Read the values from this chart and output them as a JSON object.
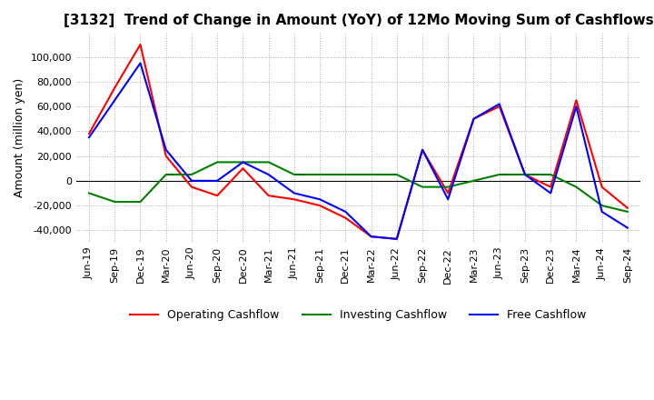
{
  "title": "[3132]  Trend of Change in Amount (YoY) of 12Mo Moving Sum of Cashflows",
  "ylabel": "Amount (million yen)",
  "x_labels": [
    "Jun-19",
    "Sep-19",
    "Dec-19",
    "Mar-20",
    "Jun-20",
    "Sep-20",
    "Dec-20",
    "Mar-21",
    "Jun-21",
    "Sep-21",
    "Dec-21",
    "Mar-22",
    "Jun-22",
    "Sep-22",
    "Dec-22",
    "Mar-23",
    "Jun-23",
    "Sep-23",
    "Dec-23",
    "Mar-24",
    "Jun-24",
    "Sep-24"
  ],
  "operating": [
    38000,
    75000,
    110000,
    20000,
    -5000,
    -12000,
    10000,
    -12000,
    -15000,
    -20000,
    -30000,
    -45000,
    -47000,
    25000,
    -10000,
    50000,
    60000,
    5000,
    -5000,
    65000,
    -5000,
    -22000
  ],
  "investing": [
    -10000,
    -17000,
    -17000,
    5000,
    5000,
    15000,
    15000,
    15000,
    5000,
    5000,
    5000,
    5000,
    5000,
    -5000,
    -5000,
    0,
    5000,
    5000,
    5000,
    -5000,
    -20000,
    -25000
  ],
  "free": [
    35000,
    65000,
    95000,
    25000,
    0,
    0,
    15000,
    5000,
    -10000,
    -15000,
    -25000,
    -45000,
    -47000,
    25000,
    -15000,
    50000,
    62000,
    5000,
    -10000,
    60000,
    -25000,
    -38000
  ],
  "operating_color": "#ff0000",
  "investing_color": "#008000",
  "free_color": "#0000ff",
  "ylim": [
    -50000,
    120000
  ],
  "yticks": [
    -40000,
    -20000,
    0,
    20000,
    40000,
    60000,
    80000,
    100000
  ],
  "background_color": "#ffffff",
  "grid_color": "#aaaaaa",
  "title_fontsize": 11,
  "axis_fontsize": 9,
  "tick_fontsize": 8,
  "legend_fontsize": 9,
  "linewidth": 1.5
}
